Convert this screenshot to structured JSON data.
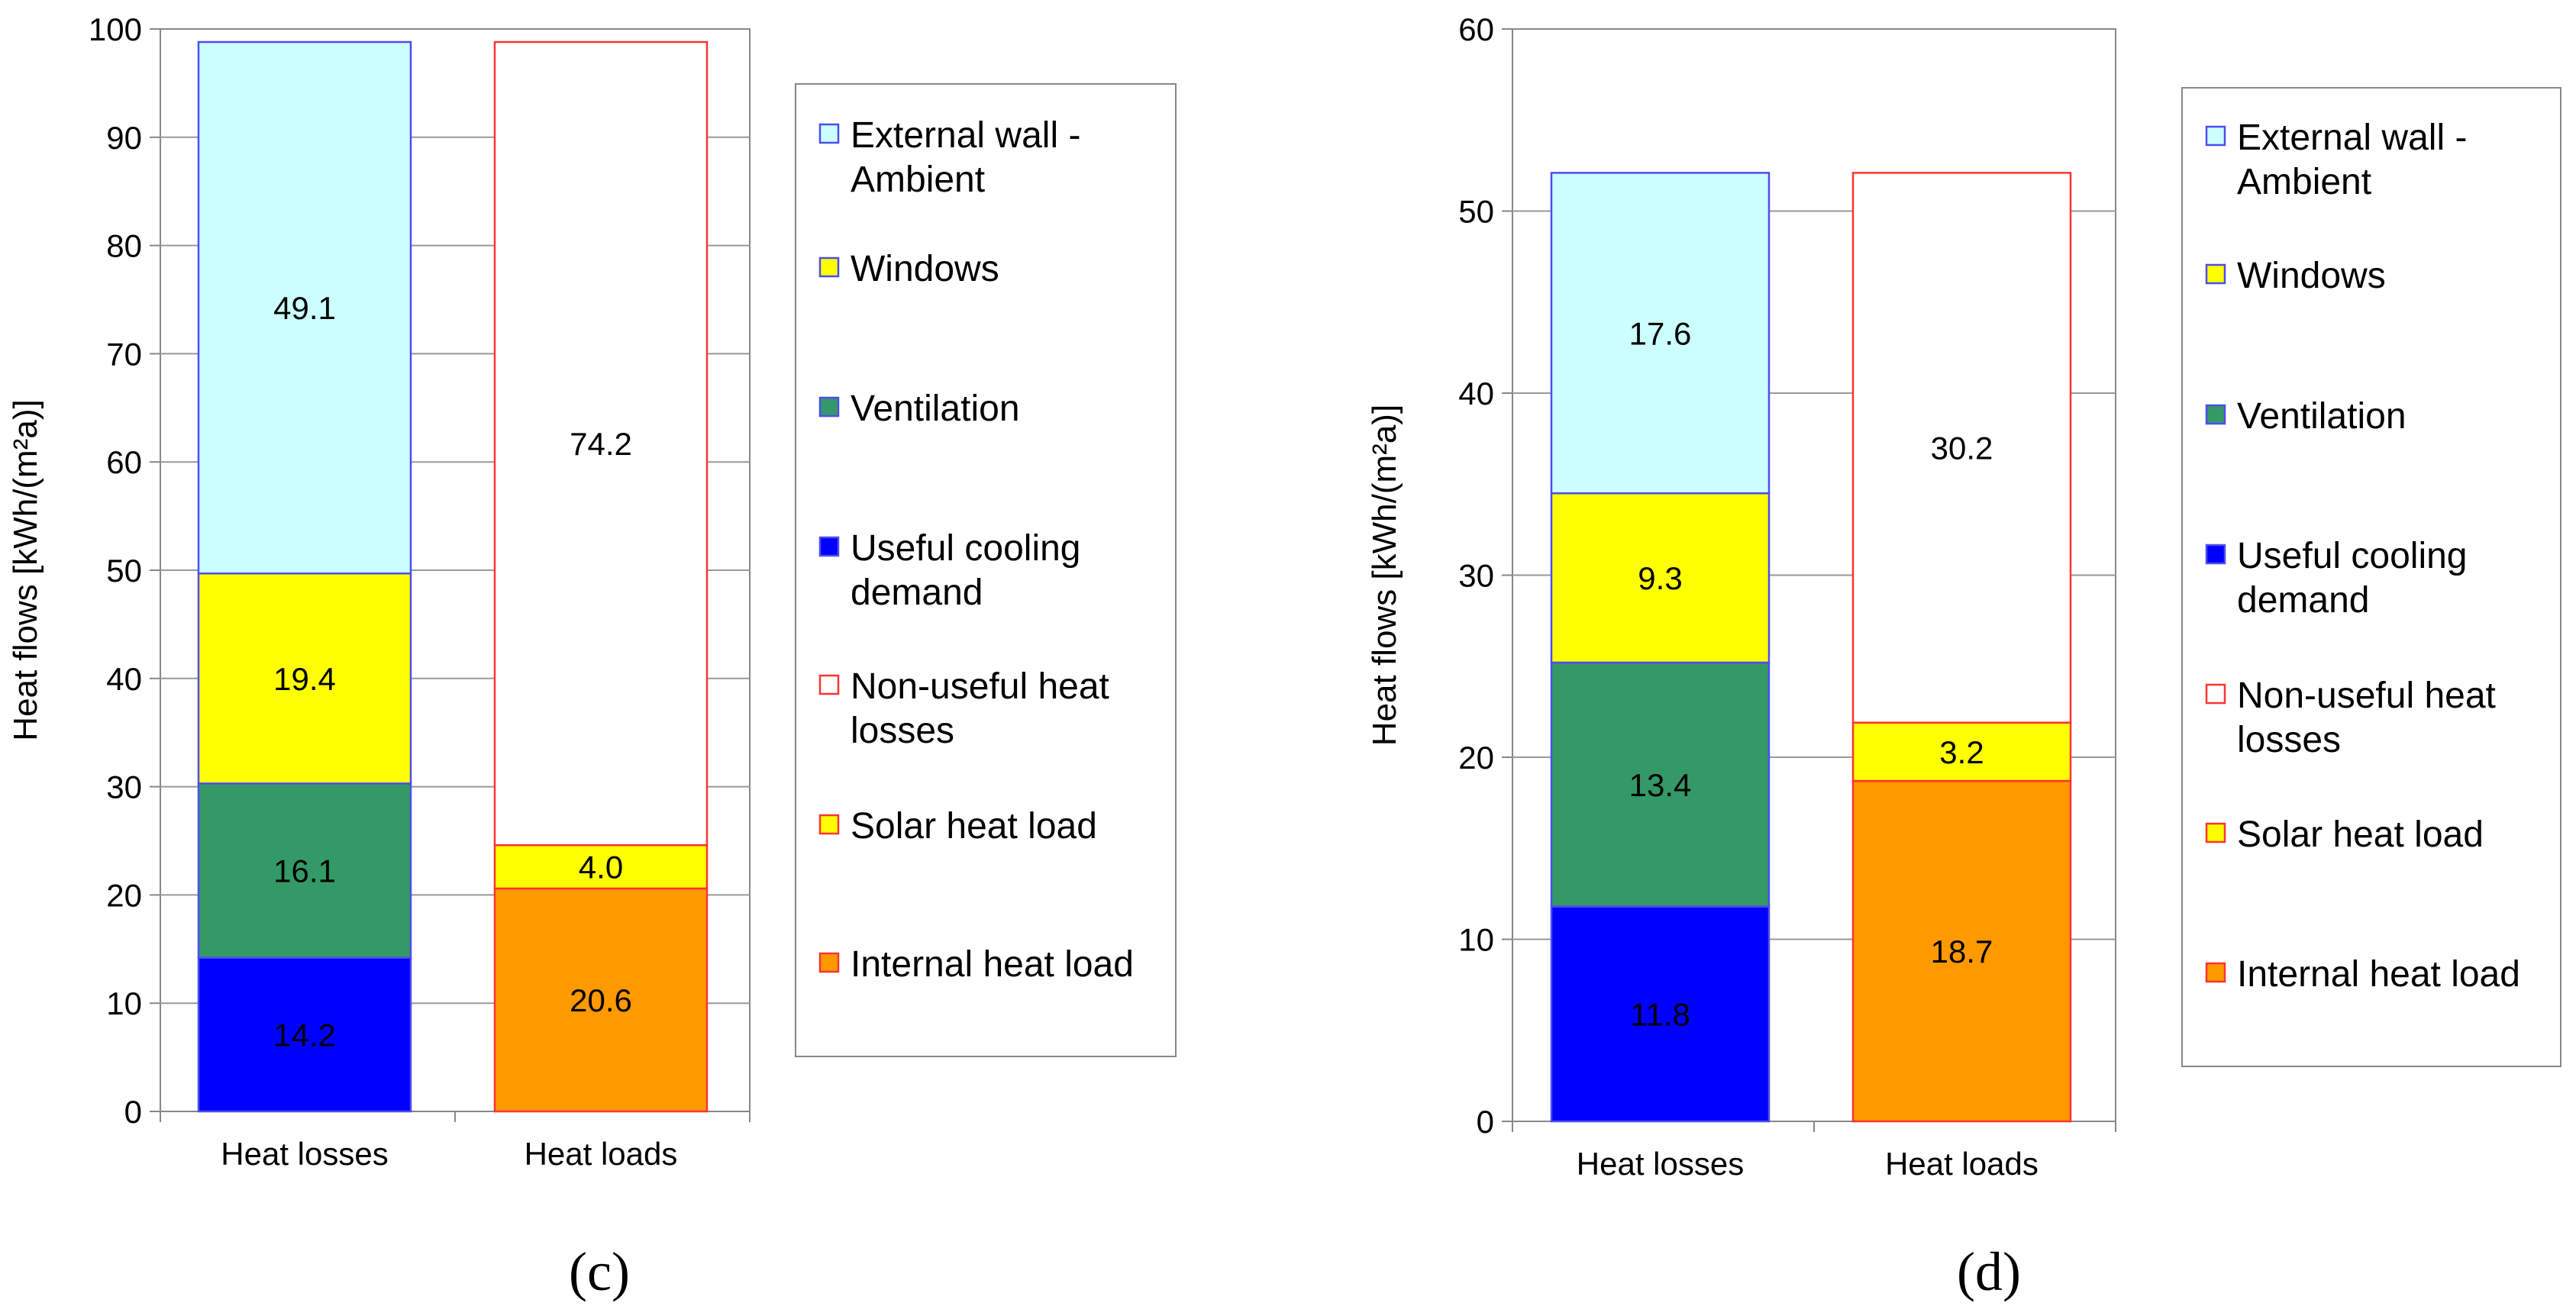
{
  "chart_data": [
    {
      "type": "bar",
      "stacked": true,
      "panel_label": "(c)",
      "ylabel": "Heat flows [kWh/(m²a)]",
      "ylim": [
        0,
        100
      ],
      "yticks": [
        "0",
        "10",
        "20",
        "30",
        "40",
        "50",
        "60",
        "70",
        "80",
        "90",
        "100"
      ],
      "categories": [
        "Heat losses",
        "Heat loads"
      ],
      "stacks": [
        [
          {
            "name": "Useful cooling demand",
            "value": 14.2,
            "label": "14.2"
          },
          {
            "name": "Ventilation",
            "value": 16.1,
            "label": "16.1"
          },
          {
            "name": "Windows",
            "value": 19.4,
            "label": "19.4"
          },
          {
            "name": "External wall - Ambient",
            "value": 49.1,
            "label": "49.1"
          }
        ],
        [
          {
            "name": "Internal heat load",
            "value": 20.6,
            "label": "20.6"
          },
          {
            "name": "Solar heat load",
            "value": 4.0,
            "label": "4.0"
          },
          {
            "name": "Non-useful heat losses",
            "value": 74.2,
            "label": "74.2"
          }
        ]
      ],
      "legend": [
        {
          "name": "External wall - Ambient",
          "lines": [
            "External wall -",
            "Ambient"
          ]
        },
        {
          "name": "Windows",
          "lines": [
            "Windows"
          ]
        },
        {
          "name": "Ventilation",
          "lines": [
            "Ventilation"
          ]
        },
        {
          "name": "Useful cooling demand",
          "lines": [
            "Useful cooling",
            "demand"
          ]
        },
        {
          "name": "Non-useful heat losses",
          "lines": [
            "Non-useful heat",
            "losses"
          ]
        },
        {
          "name": "Solar heat load",
          "lines": [
            "Solar heat load"
          ]
        },
        {
          "name": "Internal heat load",
          "lines": [
            "Internal heat load"
          ]
        }
      ]
    },
    {
      "type": "bar",
      "stacked": true,
      "panel_label": "(d)",
      "ylabel": "Heat flows [kWh/(m²a)]",
      "ylim": [
        0,
        60
      ],
      "yticks": [
        "0",
        "10",
        "20",
        "30",
        "40",
        "50",
        "60"
      ],
      "categories": [
        "Heat losses",
        "Heat loads"
      ],
      "stacks": [
        [
          {
            "name": "Useful cooling demand",
            "value": 11.8,
            "label": "11.8"
          },
          {
            "name": "Ventilation",
            "value": 13.4,
            "label": "13.4"
          },
          {
            "name": "Windows",
            "value": 9.3,
            "label": "9.3"
          },
          {
            "name": "External wall - Ambient",
            "value": 17.6,
            "label": "17.6"
          }
        ],
        [
          {
            "name": "Internal heat load",
            "value": 18.7,
            "label": "18.7"
          },
          {
            "name": "Solar heat load",
            "value": 3.2,
            "label": "3.2"
          },
          {
            "name": "Non-useful heat losses",
            "value": 30.2,
            "label": "30.2"
          }
        ]
      ],
      "legend": [
        {
          "name": "External wall - Ambient",
          "lines": [
            "External wall -",
            "Ambient"
          ]
        },
        {
          "name": "Windows",
          "lines": [
            "Windows"
          ]
        },
        {
          "name": "Ventilation",
          "lines": [
            "Ventilation"
          ]
        },
        {
          "name": "Useful cooling demand",
          "lines": [
            "Useful cooling",
            "demand"
          ]
        },
        {
          "name": "Non-useful heat losses",
          "lines": [
            "Non-useful heat",
            "losses"
          ]
        },
        {
          "name": "Solar heat load",
          "lines": [
            "Solar heat load"
          ]
        },
        {
          "name": "Internal heat load",
          "lines": [
            "Internal heat load"
          ]
        }
      ]
    }
  ],
  "colors": {
    "External wall - Ambient": {
      "fill": "#ccffff",
      "stroke": "#4d4df2"
    },
    "Windows": {
      "fill": "#ffff00",
      "stroke": "#4d4df2"
    },
    "Ventilation": {
      "fill": "#339966",
      "stroke": "#4d4df2"
    },
    "Useful cooling demand": {
      "fill": "#0000ff",
      "stroke": "#4d4df2"
    },
    "Non-useful heat losses": {
      "fill": "#ffffff",
      "stroke": "#ff3333"
    },
    "Solar heat load": {
      "fill": "#ffff00",
      "stroke": "#ff3333"
    },
    "Internal heat load": {
      "fill": "#ff9900",
      "stroke": "#ff3333"
    },
    "gridline": "#999999",
    "axis": "#888888"
  }
}
